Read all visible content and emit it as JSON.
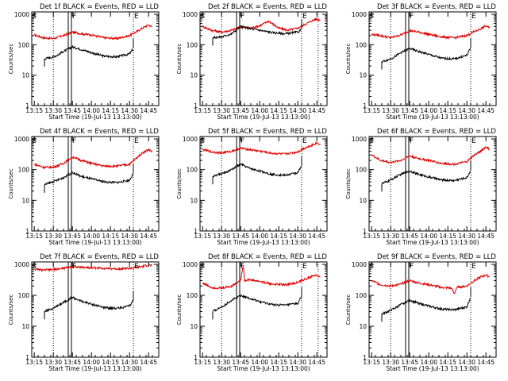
{
  "colors": {
    "events": "#000000",
    "lld": "#e00000",
    "axis": "#000000",
    "background": "#ffffff"
  },
  "common": {
    "ylabel": "Counts/sec",
    "xlabel": "Start Time (19-Jul-13 13:13:00)",
    "x_ticks": [
      "13:15",
      "13:30",
      "13:45",
      "14:00",
      "14:15",
      "14:30",
      "14:45"
    ],
    "y_ticks": [
      "1",
      "10",
      "100",
      "1000"
    ],
    "marker_labels": {
      "start": "S",
      "flare": "F",
      "end": "E"
    },
    "minor_ticks_y": true
  },
  "chart_data": [
    {
      "type": "line",
      "panel": "det-1f",
      "title": "Det 1f BLACK = Events, RED = LLD",
      "xlabel": "Start Time (19-Jul-13 13:13:00)",
      "ylabel": "Counts/sec",
      "xlim": [
        "13:13",
        "14:53"
      ],
      "ylim": [
        1,
        1200
      ],
      "yscale": "log",
      "markers": {
        "S": "13:15",
        "F": "13:43",
        "E": "14:33"
      },
      "dotted_lines": [
        "13:30",
        "14:33"
      ],
      "series": [
        {
          "name": "LLD",
          "color": "#e00000",
          "x": [
            "13:15",
            "13:22",
            "13:30",
            "13:38",
            "13:45",
            "13:52",
            "14:00",
            "14:10",
            "14:20",
            "14:30",
            "14:35",
            "14:40",
            "14:45",
            "14:48"
          ],
          "values": [
            210,
            170,
            160,
            200,
            260,
            230,
            210,
            170,
            160,
            200,
            260,
            350,
            450,
            380
          ]
        },
        {
          "name": "Events",
          "color": "#000000",
          "x": [
            "13:23",
            "13:28",
            "13:33",
            "13:38",
            "13:45",
            "13:52",
            "14:00",
            "14:10",
            "14:20",
            "14:30",
            "14:33"
          ],
          "values": [
            35,
            38,
            45,
            60,
            85,
            70,
            55,
            42,
            40,
            50,
            75
          ]
        }
      ]
    },
    {
      "type": "line",
      "panel": "det-2f",
      "title": "Det 2f BLACK = Events, RED = LLD",
      "xlabel": "Start Time (19-Jul-13 13:13:00)",
      "ylabel": "Counts/sec",
      "xlim": [
        "13:13",
        "14:53"
      ],
      "ylim": [
        1,
        1200
      ],
      "yscale": "log",
      "markers": {
        "S": "13:15",
        "F": "13:43",
        "E": "14:33"
      },
      "dotted_lines": [
        "13:30",
        "14:33",
        "14:46"
      ],
      "series": [
        {
          "name": "LLD",
          "color": "#e00000",
          "x": [
            "13:15",
            "13:22",
            "13:30",
            "13:38",
            "13:45",
            "13:52",
            "14:00",
            "14:07",
            "14:15",
            "14:22",
            "14:30",
            "14:37",
            "14:44",
            "14:48"
          ],
          "values": [
            400,
            300,
            260,
            300,
            380,
            350,
            420,
            600,
            350,
            300,
            350,
            500,
            700,
            650
          ]
        },
        {
          "name": "Events",
          "color": "#000000",
          "x": [
            "13:23",
            "13:30",
            "13:38",
            "13:45",
            "13:52",
            "14:00",
            "14:10",
            "14:20",
            "14:30",
            "14:33"
          ],
          "values": [
            170,
            180,
            230,
            400,
            340,
            300,
            250,
            230,
            260,
            320
          ]
        }
      ]
    },
    {
      "type": "line",
      "panel": "det-3f",
      "title": "Det 3f BLACK = Events, RED = LLD",
      "xlabel": "Start Time (19-Jul-13 13:13:00)",
      "ylabel": "Counts/sec",
      "xlim": [
        "13:13",
        "14:53"
      ],
      "ylim": [
        1,
        1200
      ],
      "yscale": "log",
      "markers": {
        "S": "13:15",
        "F": "13:43",
        "E": "14:33"
      },
      "dotted_lines": [
        "13:30",
        "14:33"
      ],
      "series": [
        {
          "name": "LLD",
          "color": "#e00000",
          "x": [
            "13:15",
            "13:22",
            "13:30",
            "13:38",
            "13:45",
            "13:52",
            "14:00",
            "14:10",
            "14:20",
            "14:30",
            "14:35",
            "14:40",
            "14:45",
            "14:48"
          ],
          "values": [
            220,
            200,
            170,
            210,
            290,
            260,
            220,
            180,
            170,
            200,
            260,
            320,
            420,
            350
          ]
        },
        {
          "name": "Events",
          "color": "#000000",
          "x": [
            "13:23",
            "13:28",
            "13:33",
            "13:38",
            "13:45",
            "13:52",
            "14:00",
            "14:10",
            "14:20",
            "14:30",
            "14:33"
          ],
          "values": [
            28,
            32,
            40,
            55,
            75,
            60,
            48,
            36,
            34,
            45,
            80
          ]
        }
      ]
    },
    {
      "type": "line",
      "panel": "det-4f",
      "title": "Det 4f BLACK = Events, RED = LLD",
      "xlabel": "Start Time (19-Jul-13 13:13:00)",
      "ylabel": "Counts/sec",
      "xlim": [
        "13:13",
        "14:53"
      ],
      "ylim": [
        1,
        1200
      ],
      "yscale": "log",
      "markers": {
        "S": "13:15",
        "F": "13:43",
        "E": "14:33"
      },
      "dotted_lines": [
        "13:30",
        "14:33"
      ],
      "series": [
        {
          "name": "LLD",
          "color": "#e00000",
          "x": [
            "13:15",
            "13:22",
            "13:30",
            "13:38",
            "13:45",
            "13:52",
            "14:00",
            "14:10",
            "14:20",
            "14:30",
            "14:35",
            "14:40",
            "14:45",
            "14:48"
          ],
          "values": [
            150,
            120,
            120,
            160,
            260,
            200,
            160,
            130,
            130,
            150,
            230,
            350,
            450,
            380
          ]
        },
        {
          "name": "Events",
          "color": "#000000",
          "x": [
            "13:23",
            "13:28",
            "13:33",
            "13:38",
            "13:45",
            "13:52",
            "14:00",
            "14:10",
            "14:20",
            "14:30",
            "14:33"
          ],
          "values": [
            32,
            38,
            45,
            55,
            80,
            60,
            50,
            40,
            38,
            45,
            75
          ]
        }
      ]
    },
    {
      "type": "line",
      "panel": "det-5f",
      "title": "Det 5f BLACK = Events, RED = LLD",
      "xlabel": "Start Time (19-Jul-13 13:13:00)",
      "ylabel": "Counts/sec",
      "xlim": [
        "13:13",
        "14:53"
      ],
      "ylim": [
        1,
        1200
      ],
      "yscale": "log",
      "markers": {
        "S": "13:15",
        "F": "13:43",
        "E": "14:33"
      },
      "dotted_lines": [
        "13:30",
        "14:33"
      ],
      "series": [
        {
          "name": "LLD",
          "color": "#e00000",
          "x": [
            "13:15",
            "13:22",
            "13:30",
            "13:38",
            "13:45",
            "13:52",
            "14:00",
            "14:10",
            "14:20",
            "14:30",
            "14:35",
            "14:40",
            "14:45",
            "14:48"
          ],
          "values": [
            450,
            380,
            350,
            400,
            500,
            450,
            400,
            340,
            320,
            380,
            500,
            600,
            750,
            650
          ]
        },
        {
          "name": "Events",
          "color": "#000000",
          "x": [
            "13:23",
            "13:28",
            "13:33",
            "13:38",
            "13:45",
            "13:52",
            "14:00",
            "14:10",
            "14:20",
            "14:30",
            "14:33"
          ],
          "values": [
            60,
            70,
            80,
            100,
            150,
            110,
            90,
            70,
            65,
            80,
            130
          ]
        }
      ]
    },
    {
      "type": "line",
      "panel": "det-6f",
      "title": "Det 6f BLACK = Events, RED = LLD",
      "xlabel": "Start Time (19-Jul-13 13:13:00)",
      "ylabel": "Counts/sec",
      "xlim": [
        "13:13",
        "14:53"
      ],
      "ylim": [
        1,
        1200
      ],
      "yscale": "log",
      "markers": {
        "S": "13:15",
        "F": "13:43",
        "E": "14:33"
      },
      "dotted_lines": [
        "13:30",
        "14:33"
      ],
      "series": [
        {
          "name": "LLD",
          "color": "#e00000",
          "x": [
            "13:15",
            "13:22",
            "13:30",
            "13:38",
            "13:45",
            "13:52",
            "14:00",
            "14:10",
            "14:20",
            "14:30",
            "14:35",
            "14:40",
            "14:45",
            "14:48"
          ],
          "values": [
            300,
            200,
            170,
            200,
            280,
            230,
            200,
            160,
            150,
            180,
            280,
            380,
            550,
            450
          ]
        },
        {
          "name": "Events",
          "color": "#000000",
          "x": [
            "13:23",
            "13:28",
            "13:33",
            "13:38",
            "13:45",
            "13:52",
            "14:00",
            "14:10",
            "14:20",
            "14:30",
            "14:33"
          ],
          "values": [
            35,
            42,
            55,
            70,
            90,
            70,
            58,
            46,
            44,
            55,
            95
          ]
        }
      ]
    },
    {
      "type": "line",
      "panel": "det-7f",
      "title": "Det 7f BLACK = Events, RED = LLD",
      "xlabel": "Start Time (19-Jul-13 13:13:00)",
      "ylabel": "Counts/sec",
      "xlim": [
        "13:13",
        "14:53"
      ],
      "ylim": [
        1,
        1200
      ],
      "yscale": "log",
      "markers": {
        "S": "13:15",
        "F": "13:43",
        "E": "14:33"
      },
      "dotted_lines": [
        "13:30",
        "14:33"
      ],
      "series": [
        {
          "name": "LLD",
          "color": "#e00000",
          "x": [
            "13:15",
            "13:22",
            "13:30",
            "13:38",
            "13:45",
            "13:52",
            "14:00",
            "14:10",
            "14:20",
            "14:30",
            "14:35",
            "14:40",
            "14:45",
            "14:48"
          ],
          "values": [
            700,
            650,
            680,
            750,
            850,
            800,
            780,
            750,
            720,
            750,
            800,
            850,
            950,
            900
          ]
        },
        {
          "name": "Events",
          "color": "#000000",
          "x": [
            "13:23",
            "13:28",
            "13:33",
            "13:38",
            "13:45",
            "13:52",
            "14:00",
            "14:10",
            "14:20",
            "14:30",
            "14:33"
          ],
          "values": [
            30,
            35,
            45,
            60,
            85,
            65,
            52,
            40,
            38,
            45,
            70
          ]
        }
      ]
    },
    {
      "type": "line",
      "panel": "det-8f",
      "title": "Det 8f BLACK = Events, RED = LLD",
      "xlabel": "Start Time (19-Jul-13 13:13:00)",
      "ylabel": "Counts/sec",
      "xlim": [
        "13:13",
        "14:53"
      ],
      "ylim": [
        1,
        1200
      ],
      "yscale": "log",
      "markers": {
        "S": "13:15",
        "F": "13:43",
        "E": "14:33"
      },
      "dotted_lines": [
        "13:30",
        "14:33",
        "14:46"
      ],
      "series": [
        {
          "name": "LLD",
          "color": "#e00000",
          "x": [
            "13:15",
            "13:22",
            "13:30",
            "13:38",
            "13:45",
            "13:47",
            "13:48",
            "13:52",
            "14:00",
            "14:10",
            "14:20",
            "14:30",
            "14:37",
            "14:44",
            "14:48"
          ],
          "values": [
            250,
            180,
            170,
            200,
            300,
            1000,
            300,
            320,
            280,
            230,
            220,
            260,
            350,
            450,
            380
          ]
        },
        {
          "name": "Events",
          "color": "#000000",
          "x": [
            "13:23",
            "13:28",
            "13:33",
            "13:38",
            "13:45",
            "13:52",
            "14:00",
            "14:10",
            "14:20",
            "14:30",
            "14:33"
          ],
          "values": [
            30,
            38,
            50,
            70,
            100,
            80,
            62,
            50,
            48,
            55,
            90
          ]
        }
      ]
    },
    {
      "type": "line",
      "panel": "det-9f",
      "title": "Det 9f BLACK = Events, RED = LLD",
      "xlabel": "Start Time (19-Jul-13 13:13:00)",
      "ylabel": "Counts/sec",
      "xlim": [
        "13:13",
        "14:53"
      ],
      "ylim": [
        1,
        1200
      ],
      "yscale": "log",
      "markers": {
        "S": "13:15",
        "F": "13:43",
        "E": "14:33"
      },
      "dotted_lines": [
        "13:30",
        "14:33"
      ],
      "series": [
        {
          "name": "LLD",
          "color": "#e00000",
          "x": [
            "13:15",
            "13:22",
            "13:30",
            "13:38",
            "13:45",
            "13:52",
            "14:00",
            "14:10",
            "14:18",
            "14:20",
            "14:22",
            "14:30",
            "14:35",
            "14:40",
            "14:45",
            "14:48"
          ],
          "values": [
            300,
            220,
            200,
            230,
            300,
            250,
            220,
            180,
            170,
            110,
            180,
            200,
            280,
            380,
            450,
            400
          ]
        },
        {
          "name": "Events",
          "color": "#000000",
          "x": [
            "13:23",
            "13:28",
            "13:33",
            "13:38",
            "13:45",
            "13:52",
            "14:00",
            "14:10",
            "14:20",
            "14:30",
            "14:33"
          ],
          "values": [
            25,
            30,
            38,
            50,
            70,
            55,
            45,
            36,
            34,
            42,
            90
          ]
        }
      ]
    }
  ]
}
